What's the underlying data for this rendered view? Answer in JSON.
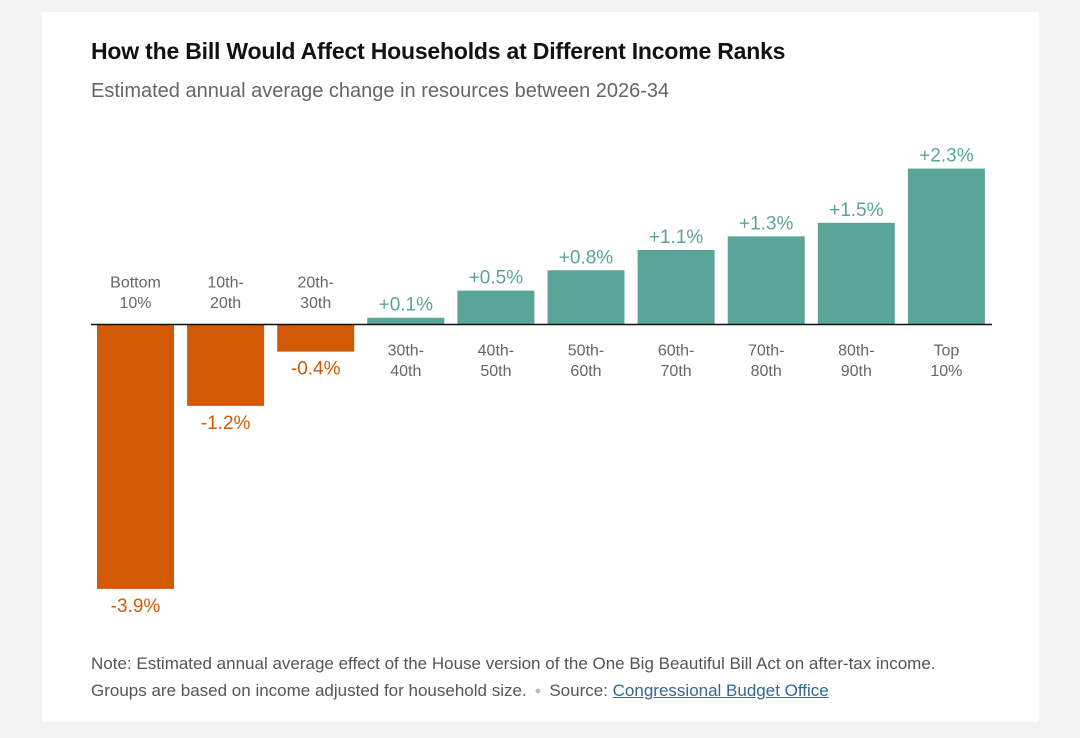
{
  "header": {
    "title": "How the Bill Would Affect Households at Different Income Ranks",
    "subtitle": "Estimated annual average change in resources between 2026-34"
  },
  "colors": {
    "positive": "#5aa598",
    "negative": "#d35a04",
    "axis": "#111111",
    "category_label": "#666666",
    "link": "#326891"
  },
  "chart_data": {
    "type": "bar",
    "title": "How the Bill Would Affect Households at Different Income Ranks",
    "subtitle": "Estimated annual average change in resources between 2026-34",
    "xlabel": "",
    "ylabel": "",
    "grid": false,
    "legend": "none",
    "unit": "%",
    "ylim": [
      -3.9,
      2.3
    ],
    "categories": [
      [
        "Bottom",
        "10%"
      ],
      [
        "10th-",
        "20th"
      ],
      [
        "20th-",
        "30th"
      ],
      [
        "30th-",
        "40th"
      ],
      [
        "40th-",
        "50th"
      ],
      [
        "50th-",
        "60th"
      ],
      [
        "60th-",
        "70th"
      ],
      [
        "70th-",
        "80th"
      ],
      [
        "80th-",
        "90th"
      ],
      [
        "Top",
        "10%"
      ]
    ],
    "values": [
      -3.9,
      -1.2,
      -0.4,
      0.1,
      0.5,
      0.8,
      1.1,
      1.3,
      1.5,
      2.3
    ],
    "value_labels": [
      "-3.9%",
      "-1.2%",
      "-0.4%",
      "+0.1%",
      "+0.5%",
      "+0.8%",
      "+1.1%",
      "+1.3%",
      "+1.5%",
      "+2.3%"
    ]
  },
  "footer": {
    "note": "Note: Estimated annual average effect of the House version of the One Big Beautiful Bill Act on after-tax income. Groups are based on income adjusted for household size.",
    "source_label": "Source:",
    "source_link": "Congressional Budget Office"
  }
}
